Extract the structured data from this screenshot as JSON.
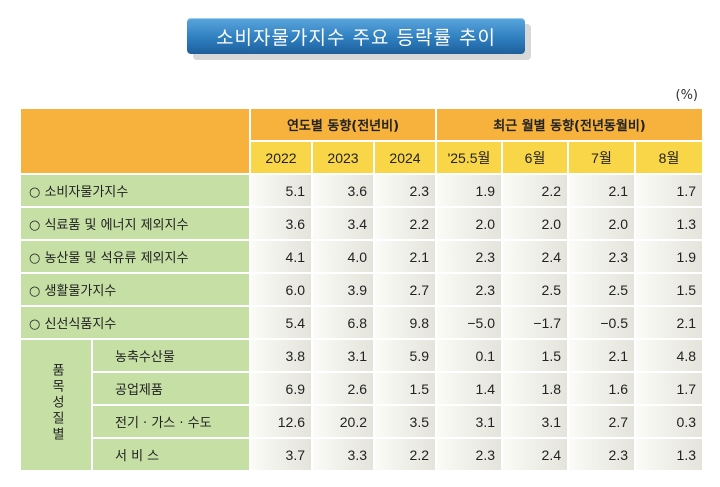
{
  "title": "소비자물가지수 주요 등락률 추이",
  "unit": "(%)",
  "header": {
    "annual": "연도별 동향(전년비)",
    "monthly": "최근 월별 동향(전년동월비)",
    "columns": [
      "2022",
      "2023",
      "2024",
      "'25.5월",
      "6월",
      "7월",
      "8월"
    ]
  },
  "rows": [
    {
      "label": "○  소비자물가지수",
      "values": [
        "5.1",
        "3.6",
        "2.3",
        "1.9",
        "2.2",
        "2.1",
        "1.7"
      ]
    },
    {
      "label": "○  식료품 및 에너지 제외지수",
      "values": [
        "3.6",
        "3.4",
        "2.2",
        "2.0",
        "2.0",
        "2.0",
        "1.3"
      ]
    },
    {
      "label": "○  농산물 및 석유류 제외지수",
      "values": [
        "4.1",
        "4.0",
        "2.1",
        "2.3",
        "2.4",
        "2.3",
        "1.9"
      ]
    },
    {
      "label": "○  생활물가지수",
      "values": [
        "6.0",
        "3.9",
        "2.7",
        "2.3",
        "2.5",
        "2.5",
        "1.5"
      ]
    },
    {
      "label": "○  신선식품지수",
      "values": [
        "5.4",
        "6.8",
        "9.8",
        "−5.0",
        "−1.7",
        "−0.5",
        "2.1"
      ]
    }
  ],
  "group": {
    "label": "품목성질별",
    "rows": [
      {
        "label": "농축수산물",
        "values": [
          "3.8",
          "3.1",
          "5.9",
          "0.1",
          "1.5",
          "2.1",
          "4.8"
        ]
      },
      {
        "label": "공업제품",
        "values": [
          "6.9",
          "2.6",
          "1.5",
          "1.4",
          "1.8",
          "1.6",
          "1.7"
        ]
      },
      {
        "label": "전기 · 가스 · 수도",
        "values": [
          "12.6",
          "20.2",
          "3.5",
          "3.1",
          "3.1",
          "2.7",
          "0.3"
        ]
      },
      {
        "label": "서  비  스",
        "values": [
          "3.7",
          "3.3",
          "2.2",
          "2.3",
          "2.4",
          "2.3",
          "1.3"
        ]
      }
    ]
  }
}
